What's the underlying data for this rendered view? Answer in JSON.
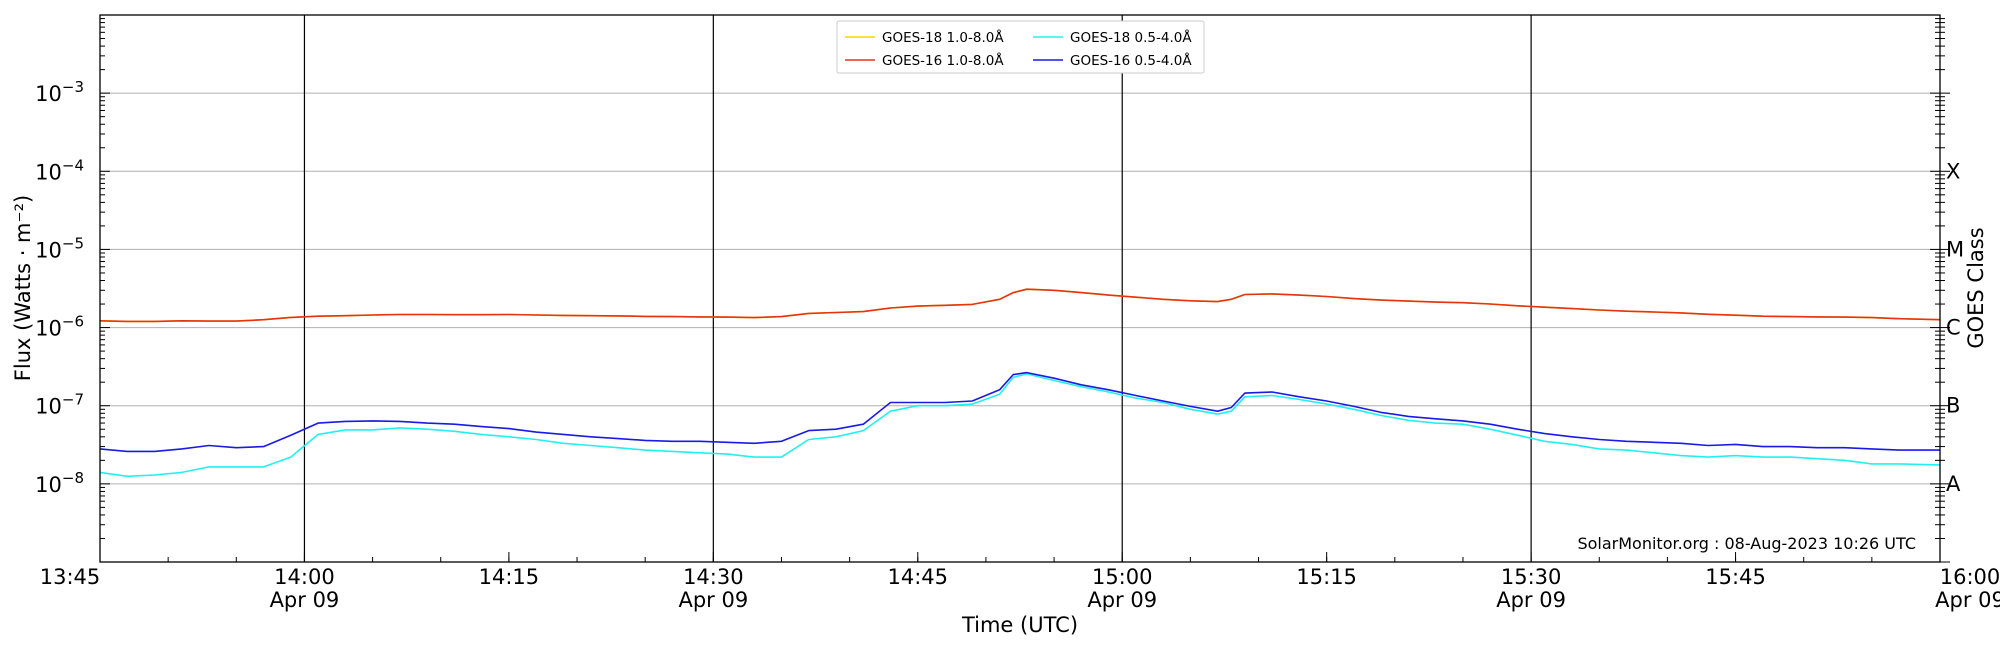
{
  "chart_data": {
    "type": "line",
    "xlabel": "Time (UTC)",
    "ylabel": "Flux (Watts · m⁻²)",
    "y2label": "GOES Class",
    "y_scale": "log",
    "ylim": [
      1e-09,
      0.01
    ],
    "xlim": [
      "13:45",
      "16:00"
    ],
    "grid": "horizontal major",
    "legend_position": "top-center",
    "annotation": "SolarMonitor.org : 08-Aug-2023 10:26 UTC",
    "x_ticks": [
      {
        "time": "13:45",
        "date": ""
      },
      {
        "time": "14:00",
        "date": "Apr 09"
      },
      {
        "time": "14:15",
        "date": ""
      },
      {
        "time": "14:30",
        "date": "Apr 09"
      },
      {
        "time": "14:45",
        "date": ""
      },
      {
        "time": "15:00",
        "date": "Apr 09"
      },
      {
        "time": "15:15",
        "date": ""
      },
      {
        "time": "15:30",
        "date": "Apr 09"
      },
      {
        "time": "15:45",
        "date": ""
      },
      {
        "time": "16:00",
        "date": "Apr 09"
      }
    ],
    "vertical_markers": [
      "14:00",
      "14:30",
      "15:00",
      "15:30"
    ],
    "y_ticks": [
      {
        "value": 1e-08,
        "exp": "−8"
      },
      {
        "value": 1e-07,
        "exp": "−7"
      },
      {
        "value": 1e-06,
        "exp": "−6"
      },
      {
        "value": 1e-05,
        "exp": "−5"
      },
      {
        "value": 0.0001,
        "exp": "−4"
      },
      {
        "value": 0.001,
        "exp": "−3"
      }
    ],
    "goes_classes": [
      {
        "label": "A",
        "value": 1e-08
      },
      {
        "label": "B",
        "value": 1e-07
      },
      {
        "label": "C",
        "value": 1e-06
      },
      {
        "label": "M",
        "value": 1e-05
      },
      {
        "label": "X",
        "value": 0.0001
      }
    ],
    "x": [
      "13:45",
      "13:47",
      "13:49",
      "13:51",
      "13:53",
      "13:55",
      "13:57",
      "13:59",
      "14:01",
      "14:03",
      "14:05",
      "14:07",
      "14:09",
      "14:11",
      "14:13",
      "14:15",
      "14:17",
      "14:19",
      "14:21",
      "14:23",
      "14:25",
      "14:27",
      "14:29",
      "14:31",
      "14:33",
      "14:35",
      "14:37",
      "14:39",
      "14:41",
      "14:43",
      "14:45",
      "14:47",
      "14:49",
      "14:51",
      "14:52",
      "14:53",
      "14:55",
      "14:57",
      "14:59",
      "15:01",
      "15:03",
      "15:05",
      "15:07",
      "15:08",
      "15:09",
      "15:11",
      "15:13",
      "15:15",
      "15:17",
      "15:19",
      "15:21",
      "15:23",
      "15:25",
      "15:27",
      "15:29",
      "15:31",
      "15:33",
      "15:35",
      "15:37",
      "15:39",
      "15:41",
      "15:43",
      "15:45",
      "15:47",
      "15:49",
      "15:51",
      "15:53",
      "15:55",
      "15:57",
      "16:00"
    ],
    "series": [
      {
        "name": "GOES-18 1.0-8.0Å",
        "color": "#ffd400",
        "values": [
          1.22e-06,
          1.2e-06,
          1.2e-06,
          1.22e-06,
          1.21e-06,
          1.21e-06,
          1.26e-06,
          1.35e-06,
          1.4e-06,
          1.42e-06,
          1.45e-06,
          1.47e-06,
          1.47e-06,
          1.46e-06,
          1.46e-06,
          1.47e-06,
          1.45e-06,
          1.43e-06,
          1.42e-06,
          1.41e-06,
          1.39e-06,
          1.38e-06,
          1.37e-06,
          1.36e-06,
          1.34e-06,
          1.38e-06,
          1.52e-06,
          1.56e-06,
          1.6e-06,
          1.78e-06,
          1.88e-06,
          1.93e-06,
          1.98e-06,
          2.3e-06,
          2.8e-06,
          3.1e-06,
          3e-06,
          2.8e-06,
          2.6e-06,
          2.45e-06,
          2.3e-06,
          2.2e-06,
          2.15e-06,
          2.3e-06,
          2.65e-06,
          2.7e-06,
          2.6e-06,
          2.5e-06,
          2.35e-06,
          2.25e-06,
          2.18e-06,
          2.12e-06,
          2.08e-06,
          2e-06,
          1.9e-06,
          1.82e-06,
          1.75e-06,
          1.68e-06,
          1.62e-06,
          1.58e-06,
          1.54e-06,
          1.48e-06,
          1.44e-06,
          1.4e-06,
          1.38e-06,
          1.37e-06,
          1.36e-06,
          1.34e-06,
          1.3e-06,
          1.26e-06
        ]
      },
      {
        "name": "GOES-16 1.0-8.0Å",
        "color": "#e63312",
        "values": [
          1.22e-06,
          1.2e-06,
          1.2e-06,
          1.22e-06,
          1.21e-06,
          1.21e-06,
          1.26e-06,
          1.35e-06,
          1.4e-06,
          1.42e-06,
          1.45e-06,
          1.47e-06,
          1.47e-06,
          1.46e-06,
          1.46e-06,
          1.47e-06,
          1.45e-06,
          1.43e-06,
          1.42e-06,
          1.41e-06,
          1.39e-06,
          1.38e-06,
          1.37e-06,
          1.36e-06,
          1.34e-06,
          1.38e-06,
          1.52e-06,
          1.56e-06,
          1.6e-06,
          1.78e-06,
          1.88e-06,
          1.93e-06,
          1.98e-06,
          2.3e-06,
          2.8e-06,
          3.1e-06,
          3e-06,
          2.8e-06,
          2.6e-06,
          2.45e-06,
          2.3e-06,
          2.2e-06,
          2.15e-06,
          2.3e-06,
          2.65e-06,
          2.7e-06,
          2.6e-06,
          2.5e-06,
          2.35e-06,
          2.25e-06,
          2.18e-06,
          2.12e-06,
          2.08e-06,
          2e-06,
          1.9e-06,
          1.82e-06,
          1.75e-06,
          1.68e-06,
          1.62e-06,
          1.58e-06,
          1.54e-06,
          1.48e-06,
          1.44e-06,
          1.4e-06,
          1.38e-06,
          1.37e-06,
          1.36e-06,
          1.34e-06,
          1.3e-06,
          1.26e-06
        ]
      },
      {
        "name": "GOES-18 0.5-4.0Å",
        "color": "#22f0f0",
        "values": [
          1.4e-08,
          1.25e-08,
          1.3e-08,
          1.4e-08,
          1.65e-08,
          1.65e-08,
          1.65e-08,
          2.2e-08,
          4.3e-08,
          4.9e-08,
          4.9e-08,
          5.2e-08,
          5e-08,
          4.7e-08,
          4.3e-08,
          4e-08,
          3.7e-08,
          3.3e-08,
          3.1e-08,
          2.9e-08,
          2.7e-08,
          2.6e-08,
          2.5e-08,
          2.4e-08,
          2.2e-08,
          2.2e-08,
          3.7e-08,
          4e-08,
          4.8e-08,
          8.5e-08,
          1e-07,
          1e-07,
          1.05e-07,
          1.4e-07,
          2.3e-07,
          2.55e-07,
          2.1e-07,
          1.75e-07,
          1.5e-07,
          1.25e-07,
          1.1e-07,
          9e-08,
          7.8e-08,
          8.5e-08,
          1.3e-07,
          1.35e-07,
          1.2e-07,
          1.05e-07,
          9e-08,
          7.5e-08,
          6.5e-08,
          6e-08,
          5.8e-08,
          5e-08,
          4.2e-08,
          3.5e-08,
          3.2e-08,
          2.8e-08,
          2.7e-08,
          2.5e-08,
          2.3e-08,
          2.2e-08,
          2.3e-08,
          2.2e-08,
          2.2e-08,
          2.1e-08,
          2e-08,
          1.8e-08,
          1.8e-08,
          1.75e-08
        ]
      },
      {
        "name": "GOES-16 0.5-4.0Å",
        "color": "#1a1ae6",
        "values": [
          2.8e-08,
          2.6e-08,
          2.6e-08,
          2.8e-08,
          3.1e-08,
          2.9e-08,
          3e-08,
          4.2e-08,
          6e-08,
          6.3e-08,
          6.4e-08,
          6.3e-08,
          6e-08,
          5.8e-08,
          5.4e-08,
          5.1e-08,
          4.6e-08,
          4.3e-08,
          4e-08,
          3.8e-08,
          3.6e-08,
          3.5e-08,
          3.5e-08,
          3.4e-08,
          3.3e-08,
          3.5e-08,
          4.8e-08,
          5e-08,
          5.8e-08,
          1.1e-07,
          1.1e-07,
          1.1e-07,
          1.15e-07,
          1.6e-07,
          2.5e-07,
          2.65e-07,
          2.25e-07,
          1.85e-07,
          1.6e-07,
          1.35e-07,
          1.15e-07,
          9.8e-08,
          8.5e-08,
          9.5e-08,
          1.45e-07,
          1.5e-07,
          1.3e-07,
          1.15e-07,
          9.8e-08,
          8.2e-08,
          7.3e-08,
          6.8e-08,
          6.4e-08,
          5.8e-08,
          5e-08,
          4.4e-08,
          4e-08,
          3.7e-08,
          3.5e-08,
          3.4e-08,
          3.3e-08,
          3.1e-08,
          3.2e-08,
          3e-08,
          3e-08,
          2.9e-08,
          2.9e-08,
          2.8e-08,
          2.7e-08,
          2.7e-08
        ]
      }
    ]
  }
}
